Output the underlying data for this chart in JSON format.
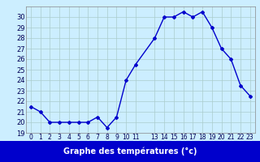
{
  "hours": [
    0,
    1,
    2,
    3,
    4,
    5,
    6,
    7,
    8,
    9,
    10,
    11,
    13,
    14,
    15,
    16,
    17,
    18,
    19,
    20,
    21,
    22,
    23
  ],
  "temps": [
    21.5,
    21.0,
    20.0,
    20.0,
    20.0,
    20.0,
    20.0,
    20.5,
    19.5,
    20.5,
    24.0,
    25.5,
    28.0,
    30.0,
    30.0,
    30.5,
    30.0,
    30.5,
    29.0,
    27.0,
    26.0,
    23.5,
    22.5
  ],
  "line_color": "#0000cc",
  "marker": "D",
  "marker_size": 2.0,
  "bg_color": "#cceeff",
  "grid_color": "#aacccc",
  "xlabel": "Graphe des températures (°c)",
  "xlabel_color": "#ffffff",
  "xlabel_bg": "#0000cc",
  "ylim": [
    19,
    31
  ],
  "yticks": [
    19,
    20,
    21,
    22,
    23,
    24,
    25,
    26,
    27,
    28,
    29,
    30
  ],
  "xticks": [
    0,
    1,
    2,
    3,
    4,
    5,
    6,
    7,
    8,
    9,
    10,
    11,
    13,
    14,
    15,
    16,
    17,
    18,
    19,
    20,
    21,
    22,
    23
  ],
  "tick_label_size": 5.5,
  "ytick_label_size": 6.0,
  "line_width": 1.0,
  "fig_width": 3.2,
  "fig_height": 2.0,
  "dpi": 100
}
